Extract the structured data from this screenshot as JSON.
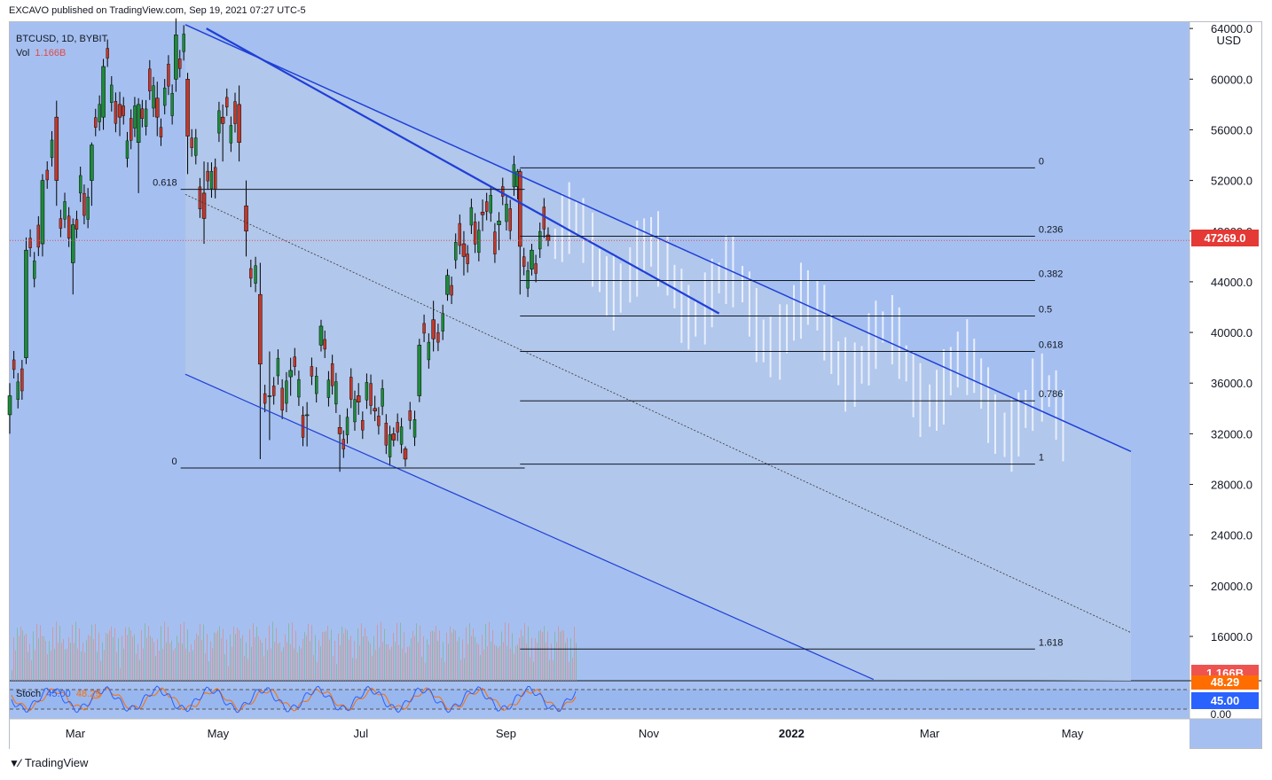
{
  "header": {
    "text": "EXCAVO published on TradingView.com, Sep 19, 2021 07:27 UTC-5"
  },
  "legend": {
    "symbol": "BTCUSD, 1D, BYBIT",
    "vol_label": "Vol",
    "vol_value": "1.166B"
  },
  "stoch": {
    "label": "Stoch",
    "k": "45.00",
    "d": "48.29"
  },
  "footer": {
    "brand": "TradingView",
    "logo": "tradingview-logo-icon"
  },
  "colors": {
    "bg": "#a5c0f0",
    "channel_fill": "#b3c8ea",
    "channel_line": "#1f3fd8",
    "price_line": "#e04a4a",
    "up": "#1e8a3a",
    "down": "#c0392b",
    "ghost": "#e8eefc"
  },
  "tags": {
    "last_price": "47269.0",
    "vol": "1.166B",
    "stoch_d": "48.29",
    "stoch_k": "45.00"
  },
  "chart_data": {
    "type": "candlestick",
    "symbol": "BTCUSD",
    "interval": "1D",
    "exchange": "BYBIT",
    "y_axis": {
      "unit": "USD",
      "ticks": [
        64000,
        60000,
        56000,
        52000,
        48000,
        44000,
        40000,
        36000,
        32000,
        28000,
        24000,
        20000,
        16000
      ],
      "tick_labels": [
        "64000.0",
        "60000.0",
        "56000.0",
        "52000.0",
        "48000.0",
        "44000.0",
        "40000.0",
        "36000.0",
        "32000.0",
        "28000.0",
        "24000.0",
        "20000.0",
        "16000.0"
      ],
      "range": [
        12500,
        64500
      ]
    },
    "x_axis": {
      "labels": [
        "Mar",
        "May",
        "Jul",
        "Sep",
        "Nov",
        "2022",
        "Mar",
        "May"
      ],
      "range": [
        "2021-02-01",
        "2022-06-20"
      ]
    },
    "last_price": 47269.0,
    "fib_right": {
      "levels": [
        {
          "label": "0",
          "value": 53000
        },
        {
          "label": "0.236",
          "value": 47600
        },
        {
          "label": "0.382",
          "value": 44100
        },
        {
          "label": "0.5",
          "value": 41300
        },
        {
          "label": "0.618",
          "value": 38500
        },
        {
          "label": "0.786",
          "value": 34600
        },
        {
          "label": "1",
          "value": 29600
        },
        {
          "label": "1.618",
          "value": 15000
        }
      ],
      "from": "2021-09-07",
      "to": "2022-04-15"
    },
    "fib_left": {
      "levels": [
        {
          "label": "0.618",
          "value": 51300
        },
        {
          "label": "0",
          "value": 29300
        }
      ],
      "from": "2021-04-15",
      "to": "2021-09-09"
    },
    "channel": {
      "upper": [
        [
          "2021-04-17",
          64300
        ],
        [
          "2022-05-26",
          30600
        ]
      ],
      "lower": [
        [
          "2021-04-17",
          36700
        ],
        [
          "2022-02-05",
          12600
        ]
      ],
      "mid": [
        [
          "2021-04-17",
          50900
        ],
        [
          "2022-05-26",
          16300
        ]
      ]
    },
    "candles_ohlc_sampled": [
      {
        "x": "2021-02-01",
        "o": 33500,
        "h": 36000,
        "l": 32000,
        "c": 35000
      },
      {
        "x": "2021-02-08",
        "o": 38000,
        "h": 47500,
        "l": 37500,
        "c": 46500
      },
      {
        "x": "2021-02-15",
        "o": 47000,
        "h": 52500,
        "l": 46000,
        "c": 52000
      },
      {
        "x": "2021-02-21",
        "o": 57000,
        "h": 58300,
        "l": 50000,
        "c": 52000
      },
      {
        "x": "2021-02-28",
        "o": 45500,
        "h": 49000,
        "l": 43000,
        "c": 48500
      },
      {
        "x": "2021-03-08",
        "o": 52000,
        "h": 55000,
        "l": 50000,
        "c": 54800
      },
      {
        "x": "2021-03-13",
        "o": 57000,
        "h": 61600,
        "l": 56000,
        "c": 61000
      },
      {
        "x": "2021-03-20",
        "o": 58000,
        "h": 59000,
        "l": 55500,
        "c": 57000
      },
      {
        "x": "2021-03-28",
        "o": 55000,
        "h": 58500,
        "l": 51000,
        "c": 58000
      },
      {
        "x": "2021-04-05",
        "o": 58500,
        "h": 59800,
        "l": 55500,
        "c": 57000
      },
      {
        "x": "2021-04-13",
        "o": 60000,
        "h": 64800,
        "l": 59000,
        "c": 63500
      },
      {
        "x": "2021-04-18",
        "o": 60000,
        "h": 60500,
        "l": 52500,
        "c": 55500
      },
      {
        "x": "2021-04-25",
        "o": 51000,
        "h": 53500,
        "l": 47000,
        "c": 49000
      },
      {
        "x": "2021-05-03",
        "o": 57000,
        "h": 58000,
        "l": 53500,
        "c": 56500
      },
      {
        "x": "2021-05-10",
        "o": 58000,
        "h": 59500,
        "l": 53500,
        "c": 55000
      },
      {
        "x": "2021-05-13",
        "o": 50000,
        "h": 52000,
        "l": 46000,
        "c": 48000
      },
      {
        "x": "2021-05-19",
        "o": 43000,
        "h": 45500,
        "l": 30000,
        "c": 37500
      },
      {
        "x": "2021-05-23",
        "o": 35000,
        "h": 38500,
        "l": 31500,
        "c": 35000
      },
      {
        "x": "2021-06-01",
        "o": 36500,
        "h": 38000,
        "l": 35000,
        "c": 37000
      },
      {
        "x": "2021-06-08",
        "o": 33500,
        "h": 34500,
        "l": 31000,
        "c": 33500
      },
      {
        "x": "2021-06-14",
        "o": 39000,
        "h": 41000,
        "l": 38500,
        "c": 40500
      },
      {
        "x": "2021-06-22",
        "o": 32500,
        "h": 33500,
        "l": 29000,
        "c": 32000
      },
      {
        "x": "2021-06-30",
        "o": 35000,
        "h": 36000,
        "l": 33500,
        "c": 34500
      },
      {
        "x": "2021-07-07",
        "o": 34000,
        "h": 35000,
        "l": 33000,
        "c": 33800
      },
      {
        "x": "2021-07-15",
        "o": 32000,
        "h": 32500,
        "l": 31000,
        "c": 31500
      },
      {
        "x": "2021-07-20",
        "o": 30800,
        "h": 31000,
        "l": 29400,
        "c": 30000
      },
      {
        "x": "2021-07-26",
        "o": 35000,
        "h": 39500,
        "l": 34500,
        "c": 39000
      },
      {
        "x": "2021-08-01",
        "o": 41000,
        "h": 42500,
        "l": 38500,
        "c": 39500
      },
      {
        "x": "2021-08-07",
        "o": 43000,
        "h": 45000,
        "l": 42500,
        "c": 44500
      },
      {
        "x": "2021-08-14",
        "o": 47000,
        "h": 48000,
        "l": 44500,
        "c": 46000
      },
      {
        "x": "2021-08-22",
        "o": 49500,
        "h": 50500,
        "l": 48000,
        "c": 49300
      },
      {
        "x": "2021-08-29",
        "o": 48500,
        "h": 49500,
        "l": 46500,
        "c": 48800
      },
      {
        "x": "2021-09-06",
        "o": 51500,
        "h": 52900,
        "l": 50500,
        "c": 52700
      },
      {
        "x": "2021-09-07",
        "o": 52700,
        "h": 52900,
        "l": 43000,
        "c": 46800
      },
      {
        "x": "2021-09-12",
        "o": 45000,
        "h": 47000,
        "l": 44500,
        "c": 46500
      },
      {
        "x": "2021-09-19",
        "o": 47700,
        "h": 48300,
        "l": 46800,
        "c": 47269
      }
    ]
  }
}
